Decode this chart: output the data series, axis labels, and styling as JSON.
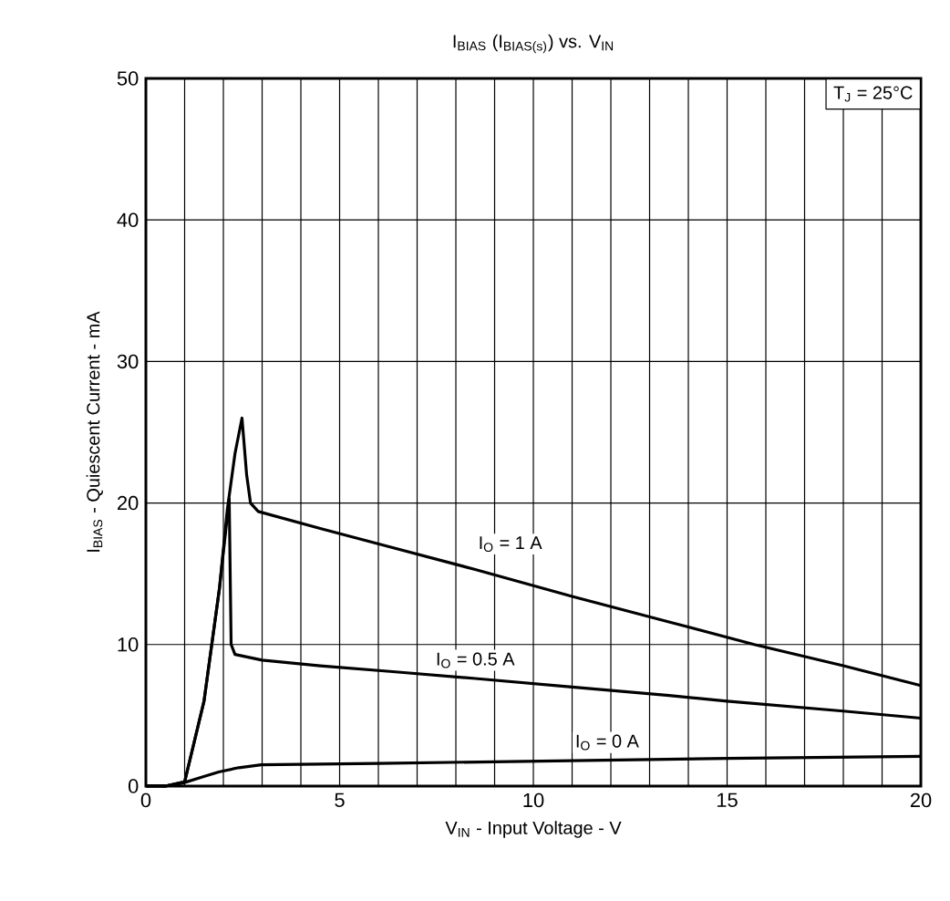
{
  "chart_data": {
    "type": "line",
    "title": "I$_{BIAS}$ (I$_{BIAS(s)}$) vs. V$_{IN}$",
    "xlabel": "V$_{IN}$ - Input Voltage - V",
    "ylabel": "I$_{BIAS}$ - Quiescent Current - mA",
    "annotations": [
      "T$_{J}$ = 25°C"
    ],
    "xlim": [
      0,
      20
    ],
    "ylim": [
      0,
      50
    ],
    "xticks": [
      0,
      {
        "value": 1,
        "label": null
      },
      {
        "value": 2,
        "label": null
      },
      {
        "value": 3,
        "label": null
      },
      {
        "value": 4,
        "label": null
      },
      5,
      {
        "value": 6,
        "label": null
      },
      {
        "value": 7,
        "label": null
      },
      {
        "value": 8,
        "label": null
      },
      {
        "value": 9,
        "label": null
      },
      10,
      {
        "value": 11,
        "label": null
      },
      {
        "value": 12,
        "label": null
      },
      {
        "value": 13,
        "label": null
      },
      {
        "value": 14,
        "label": null
      },
      15,
      {
        "value": 16,
        "label": null
      },
      {
        "value": 17,
        "label": null
      },
      {
        "value": 18,
        "label": null
      },
      {
        "value": 19,
        "label": null
      },
      20
    ],
    "yticks": [
      0,
      10,
      20,
      30,
      40,
      50
    ],
    "grid": true,
    "line_style": "solid",
    "series": [
      {
        "name": "I$_{O}$ = 1 A",
        "color": "#000000",
        "x": [
          0,
          0.5,
          1.0,
          1.5,
          1.9,
          2.1,
          2.3,
          2.48,
          2.6,
          2.7,
          2.9,
          4.5,
          6.3,
          8.5,
          11,
          13.5,
          15.7,
          18,
          20
        ],
        "values": [
          0,
          0,
          0.3,
          6,
          14,
          19.5,
          23.5,
          26,
          22,
          20,
          19.4,
          18.2,
          16.9,
          15.3,
          13.4,
          11.6,
          10.0,
          8.5,
          7.1
        ]
      },
      {
        "name": "I$_{O}$ = 0.5 A",
        "color": "#000000",
        "x": [
          0,
          0.5,
          1.0,
          1.5,
          1.9,
          2.15,
          2.2,
          2.3,
          3,
          4.5,
          6.3,
          8.5,
          11,
          13.5,
          15,
          18,
          20
        ],
        "values": [
          0,
          0,
          0.3,
          6,
          14,
          20.3,
          10,
          9.3,
          8.9,
          8.5,
          8.1,
          7.6,
          7.0,
          6.4,
          6.0,
          5.3,
          4.8
        ]
      },
      {
        "name": "I$_{O}$ = 0 A",
        "color": "#000000",
        "x": [
          0,
          0.5,
          0.94,
          1.4,
          1.88,
          2.4,
          2.98,
          6,
          11,
          15,
          20
        ],
        "values": [
          0,
          0,
          0.2,
          0.6,
          1.0,
          1.3,
          1.5,
          1.6,
          1.8,
          1.95,
          2.1
        ]
      }
    ]
  }
}
